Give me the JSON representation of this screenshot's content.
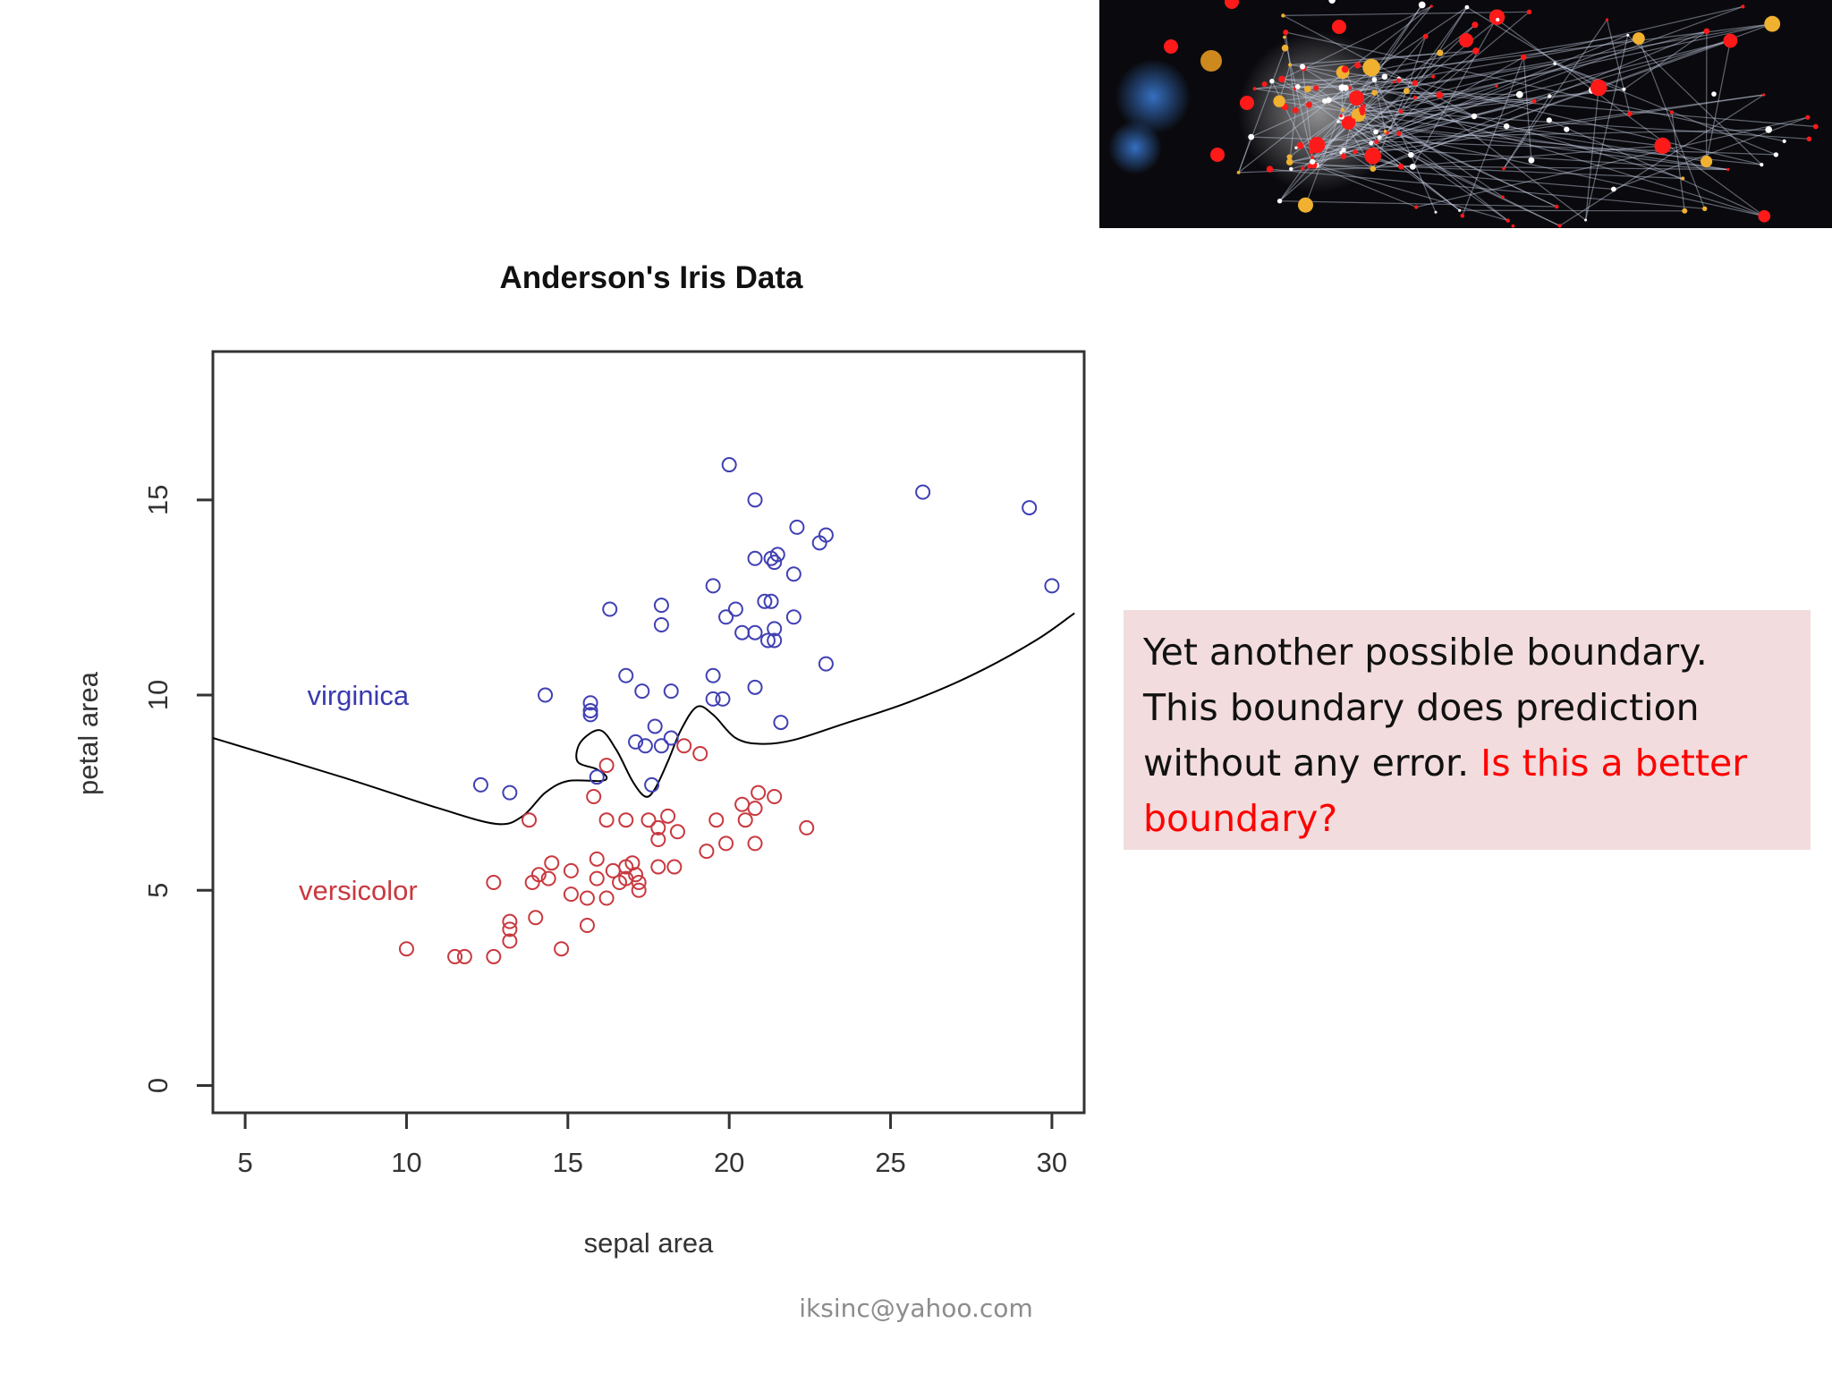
{
  "slide": {
    "callout_normal": "Yet another possible boundary. This boundary does prediction without any error.",
    "callout_highlight": "Is this a better boundary?",
    "footer_email": "iksinc@yahoo.com",
    "banner_image": "abstract-network-graph-image",
    "colors": {
      "callout_bg": "#f2dcdd",
      "highlight": "#ff0000",
      "banner_bg": "#0a0a0e"
    }
  },
  "chart_data": {
    "type": "scatter",
    "title": "Anderson's Iris Data",
    "xlabel": "sepal area",
    "ylabel": "petal area",
    "xlim": [
      4,
      31
    ],
    "ylim": [
      -0.7,
      18.8
    ],
    "xticks": [
      5,
      10,
      15,
      20,
      25,
      30
    ],
    "yticks": [
      0,
      5,
      10,
      15
    ],
    "grid": false,
    "labels": [
      {
        "text": "virginica",
        "x": 8.5,
        "y": 10,
        "color": "#3a3ab0"
      },
      {
        "text": "versicolor",
        "x": 8.5,
        "y": 5,
        "color": "#c8393f"
      }
    ],
    "series": [
      {
        "name": "virginica",
        "color": "#4040b4",
        "points": [
          [
            20,
            15.9
          ],
          [
            20.8,
            15
          ],
          [
            26,
            15.2
          ],
          [
            29.3,
            14.8
          ],
          [
            30,
            12.8
          ],
          [
            22.1,
            14.3
          ],
          [
            23,
            14.1
          ],
          [
            22.8,
            13.9
          ],
          [
            20.8,
            13.5
          ],
          [
            21.3,
            13.5
          ],
          [
            21.5,
            13.6
          ],
          [
            21.4,
            13.4
          ],
          [
            22,
            13.1
          ],
          [
            19.5,
            12.8
          ],
          [
            17.9,
            12.3
          ],
          [
            16.3,
            12.2
          ],
          [
            20.2,
            12.2
          ],
          [
            19.9,
            12
          ],
          [
            21.1,
            12.4
          ],
          [
            21.3,
            12.4
          ],
          [
            22,
            12
          ],
          [
            17.9,
            11.8
          ],
          [
            20.4,
            11.6
          ],
          [
            20.8,
            11.6
          ],
          [
            21.4,
            11.7
          ],
          [
            21.2,
            11.4
          ],
          [
            21.4,
            11.4
          ],
          [
            23,
            10.8
          ],
          [
            16.8,
            10.5
          ],
          [
            19.5,
            10.5
          ],
          [
            17.3,
            10.1
          ],
          [
            18.2,
            10.1
          ],
          [
            20.8,
            10.2
          ],
          [
            19.5,
            9.9
          ],
          [
            19.8,
            9.9
          ],
          [
            14.3,
            10
          ],
          [
            15.7,
            9.8
          ],
          [
            15.7,
            9.6
          ],
          [
            15.7,
            9.5
          ],
          [
            21.6,
            9.3
          ],
          [
            17.7,
            9.2
          ],
          [
            17.1,
            8.8
          ],
          [
            17.4,
            8.7
          ],
          [
            17.9,
            8.7
          ],
          [
            18.2,
            8.9
          ],
          [
            15.9,
            7.9
          ],
          [
            17.6,
            7.7
          ],
          [
            12.3,
            7.7
          ],
          [
            13.2,
            7.5
          ]
        ]
      },
      {
        "name": "versicolor",
        "color": "#c8393f",
        "points": [
          [
            18.6,
            8.7
          ],
          [
            19.1,
            8.5
          ],
          [
            16.2,
            8.2
          ],
          [
            15.8,
            7.4
          ],
          [
            20.9,
            7.5
          ],
          [
            21.4,
            7.4
          ],
          [
            20.4,
            7.2
          ],
          [
            20.8,
            7.1
          ],
          [
            13.8,
            6.8
          ],
          [
            16.2,
            6.8
          ],
          [
            16.8,
            6.8
          ],
          [
            17.5,
            6.8
          ],
          [
            18.1,
            6.9
          ],
          [
            19.6,
            6.8
          ],
          [
            20.5,
            6.8
          ],
          [
            17.8,
            6.6
          ],
          [
            22.4,
            6.6
          ],
          [
            17.8,
            6.3
          ],
          [
            18.4,
            6.5
          ],
          [
            19.9,
            6.2
          ],
          [
            20.8,
            6.2
          ],
          [
            19.3,
            6
          ],
          [
            14.5,
            5.7
          ],
          [
            15.9,
            5.8
          ],
          [
            17,
            5.7
          ],
          [
            16.8,
            5.6
          ],
          [
            17.8,
            5.6
          ],
          [
            18.3,
            5.6
          ],
          [
            15.1,
            5.5
          ],
          [
            16.4,
            5.5
          ],
          [
            14.1,
            5.4
          ],
          [
            14.4,
            5.3
          ],
          [
            13.9,
            5.2
          ],
          [
            12.7,
            5.2
          ],
          [
            15.9,
            5.3
          ],
          [
            16.8,
            5.3
          ],
          [
            17.1,
            5.4
          ],
          [
            16.6,
            5.2
          ],
          [
            17.2,
            5.2
          ],
          [
            17.2,
            5
          ],
          [
            15.1,
            4.9
          ],
          [
            15.6,
            4.8
          ],
          [
            16.2,
            4.8
          ],
          [
            14,
            4.3
          ],
          [
            13.2,
            4.2
          ],
          [
            13.2,
            4
          ],
          [
            15.6,
            4.1
          ],
          [
            13.2,
            3.7
          ],
          [
            10,
            3.5
          ],
          [
            14.8,
            3.5
          ],
          [
            11.5,
            3.3
          ],
          [
            11.8,
            3.3
          ],
          [
            12.7,
            3.3
          ]
        ]
      }
    ],
    "boundary": {
      "name": "decision-boundary",
      "color": "#000000",
      "points": [
        [
          4,
          8.9
        ],
        [
          8,
          7.9
        ],
        [
          11,
          7.1
        ],
        [
          12.8,
          6.7
        ],
        [
          13.6,
          6.9
        ],
        [
          14.3,
          7.5
        ],
        [
          15,
          7.8
        ],
        [
          16,
          7.8
        ],
        [
          16.2,
          7.9
        ],
        [
          15.9,
          8.1
        ],
        [
          15.3,
          8.3
        ],
        [
          15.4,
          8.8
        ],
        [
          16,
          9.1
        ],
        [
          16.5,
          8.6
        ],
        [
          17,
          7.8
        ],
        [
          17.4,
          7.4
        ],
        [
          17.7,
          7.6
        ],
        [
          18.1,
          8.3
        ],
        [
          18.5,
          9.1
        ],
        [
          19,
          9.7
        ],
        [
          19.5,
          9.5
        ],
        [
          20.2,
          8.9
        ],
        [
          21,
          8.75
        ],
        [
          22,
          8.85
        ],
        [
          23.5,
          9.25
        ],
        [
          25.5,
          9.8
        ],
        [
          27.5,
          10.5
        ],
        [
          29.5,
          11.4
        ],
        [
          30.7,
          12.1
        ]
      ]
    }
  }
}
